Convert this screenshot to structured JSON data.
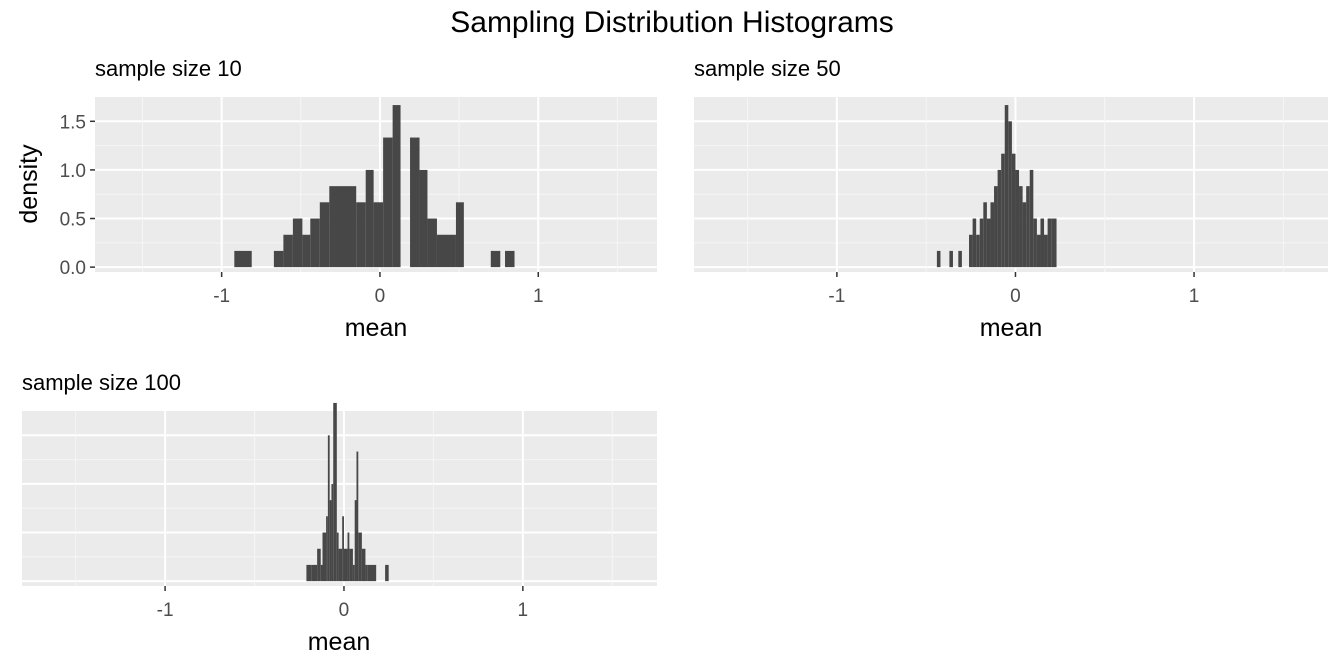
{
  "figure": {
    "title": "Sampling Distribution Histograms"
  },
  "chart_data": [
    {
      "type": "bar",
      "subtitle": "sample size 10",
      "xlabel": "mean",
      "ylabel": "density",
      "xlim": [
        -1.8,
        1.75
      ],
      "ylim": [
        -0.05,
        1.75
      ],
      "xticks": [
        -1,
        0,
        1
      ],
      "yticks": [
        0.0,
        0.5,
        1.0,
        1.5
      ],
      "ytick_labels": [
        "0.0",
        "0.5",
        "1.0",
        "1.5"
      ],
      "bin_width": 0.0571,
      "bins": [
        {
          "x0": -0.92,
          "x1": -0.81,
          "y": 0.167
        },
        {
          "x0": -0.67,
          "x1": -0.61,
          "y": 0.167
        },
        {
          "x0": -0.61,
          "x1": -0.55,
          "y": 0.333
        },
        {
          "x0": -0.55,
          "x1": -0.49,
          "y": 0.5
        },
        {
          "x0": -0.49,
          "x1": -0.44,
          "y": 0.333
        },
        {
          "x0": -0.44,
          "x1": -0.38,
          "y": 0.5
        },
        {
          "x0": -0.38,
          "x1": -0.32,
          "y": 0.667
        },
        {
          "x0": -0.32,
          "x1": -0.15,
          "y": 0.833
        },
        {
          "x0": -0.15,
          "x1": -0.09,
          "y": 0.667
        },
        {
          "x0": -0.09,
          "x1": -0.04,
          "y": 1.0
        },
        {
          "x0": -0.04,
          "x1": 0.02,
          "y": 0.667
        },
        {
          "x0": 0.02,
          "x1": 0.08,
          "y": 1.333
        },
        {
          "x0": 0.08,
          "x1": 0.13,
          "y": 1.667
        },
        {
          "x0": 0.13,
          "x1": 0.19,
          "y": 0.0
        },
        {
          "x0": 0.19,
          "x1": 0.25,
          "y": 1.333
        },
        {
          "x0": 0.25,
          "x1": 0.3,
          "y": 1.0
        },
        {
          "x0": 0.3,
          "x1": 0.36,
          "y": 0.5
        },
        {
          "x0": 0.36,
          "x1": 0.48,
          "y": 0.333
        },
        {
          "x0": 0.48,
          "x1": 0.53,
          "y": 0.667
        },
        {
          "x0": 0.53,
          "x1": 0.56,
          "y": 0.0
        },
        {
          "x0": 0.7,
          "x1": 0.76,
          "y": 0.167
        },
        {
          "x0": 0.79,
          "x1": 0.85,
          "y": 0.167
        }
      ]
    },
    {
      "type": "bar",
      "subtitle": "sample size 50",
      "xlabel": "mean",
      "ylabel": "",
      "xlim": [
        -1.8,
        1.75
      ],
      "ylim": [
        -0.05,
        1.75
      ],
      "xticks": [
        -1,
        0,
        1
      ],
      "bin_width": 0.025,
      "bins": [
        {
          "x0": -0.44,
          "x1": -0.42,
          "y": 0.167
        },
        {
          "x0": -0.37,
          "x1": -0.35,
          "y": 0.167
        },
        {
          "x0": -0.32,
          "x1": -0.3,
          "y": 0.167
        },
        {
          "x0": -0.26,
          "x1": -0.24,
          "y": 0.333
        },
        {
          "x0": -0.24,
          "x1": -0.22,
          "y": 0.5
        },
        {
          "x0": -0.22,
          "x1": -0.2,
          "y": 0.333
        },
        {
          "x0": -0.2,
          "x1": -0.18,
          "y": 0.5
        },
        {
          "x0": -0.18,
          "x1": -0.16,
          "y": 0.667
        },
        {
          "x0": -0.16,
          "x1": -0.14,
          "y": 0.5
        },
        {
          "x0": -0.14,
          "x1": -0.12,
          "y": 0.667
        },
        {
          "x0": -0.12,
          "x1": -0.1,
          "y": 0.833
        },
        {
          "x0": -0.1,
          "x1": -0.08,
          "y": 1.0
        },
        {
          "x0": -0.08,
          "x1": -0.06,
          "y": 1.167
        },
        {
          "x0": -0.06,
          "x1": -0.04,
          "y": 1.667
        },
        {
          "x0": -0.04,
          "x1": -0.02,
          "y": 1.5
        },
        {
          "x0": -0.02,
          "x1": 0.0,
          "y": 1.167
        },
        {
          "x0": 0.0,
          "x1": 0.02,
          "y": 1.0
        },
        {
          "x0": 0.02,
          "x1": 0.04,
          "y": 0.833
        },
        {
          "x0": 0.04,
          "x1": 0.06,
          "y": 0.667
        },
        {
          "x0": 0.06,
          "x1": 0.08,
          "y": 0.833
        },
        {
          "x0": 0.08,
          "x1": 0.1,
          "y": 1.0
        },
        {
          "x0": 0.1,
          "x1": 0.12,
          "y": 0.5
        },
        {
          "x0": 0.12,
          "x1": 0.14,
          "y": 0.333
        },
        {
          "x0": 0.14,
          "x1": 0.16,
          "y": 0.5
        },
        {
          "x0": 0.16,
          "x1": 0.18,
          "y": 0.333
        },
        {
          "x0": 0.18,
          "x1": 0.2,
          "y": 0.5
        },
        {
          "x0": 0.2,
          "x1": 0.23,
          "y": 0.5
        }
      ]
    },
    {
      "type": "bar",
      "subtitle": "sample size 100",
      "xlabel": "mean",
      "ylabel": "",
      "xlim": [
        -1.8,
        1.75
      ],
      "ylim": [
        -0.05,
        1.75
      ],
      "xticks": [
        -1,
        0,
        1
      ],
      "bin_width": 0.015,
      "bins": [
        {
          "x0": -0.21,
          "x1": -0.18,
          "y": 0.167
        },
        {
          "x0": -0.18,
          "x1": -0.15,
          "y": 0.167
        },
        {
          "x0": -0.15,
          "x1": -0.13,
          "y": 0.333
        },
        {
          "x0": -0.13,
          "x1": -0.12,
          "y": 0.167
        },
        {
          "x0": -0.12,
          "x1": -0.1,
          "y": 0.5
        },
        {
          "x0": -0.1,
          "x1": -0.09,
          "y": 0.667
        },
        {
          "x0": -0.09,
          "x1": -0.08,
          "y": 1.5
        },
        {
          "x0": -0.08,
          "x1": -0.07,
          "y": 0.833
        },
        {
          "x0": -0.07,
          "x1": -0.06,
          "y": 1.0
        },
        {
          "x0": -0.06,
          "x1": -0.04,
          "y": 1.833
        },
        {
          "x0": -0.04,
          "x1": -0.03,
          "y": 0.5
        },
        {
          "x0": -0.03,
          "x1": -0.01,
          "y": 0.333
        },
        {
          "x0": -0.01,
          "x1": 0.0,
          "y": 0.667
        },
        {
          "x0": 0.0,
          "x1": 0.02,
          "y": 0.333
        },
        {
          "x0": 0.02,
          "x1": 0.03,
          "y": 0.5
        },
        {
          "x0": 0.03,
          "x1": 0.05,
          "y": 0.333
        },
        {
          "x0": 0.05,
          "x1": 0.06,
          "y": 0.167
        },
        {
          "x0": 0.06,
          "x1": 0.07,
          "y": 0.833
        },
        {
          "x0": 0.07,
          "x1": 0.08,
          "y": 1.333
        },
        {
          "x0": 0.08,
          "x1": 0.1,
          "y": 0.5
        },
        {
          "x0": 0.1,
          "x1": 0.12,
          "y": 0.333
        },
        {
          "x0": 0.12,
          "x1": 0.13,
          "y": 0.167
        },
        {
          "x0": 0.13,
          "x1": 0.18,
          "y": 0.167
        },
        {
          "x0": 0.23,
          "x1": 0.25,
          "y": 0.167
        }
      ]
    }
  ]
}
